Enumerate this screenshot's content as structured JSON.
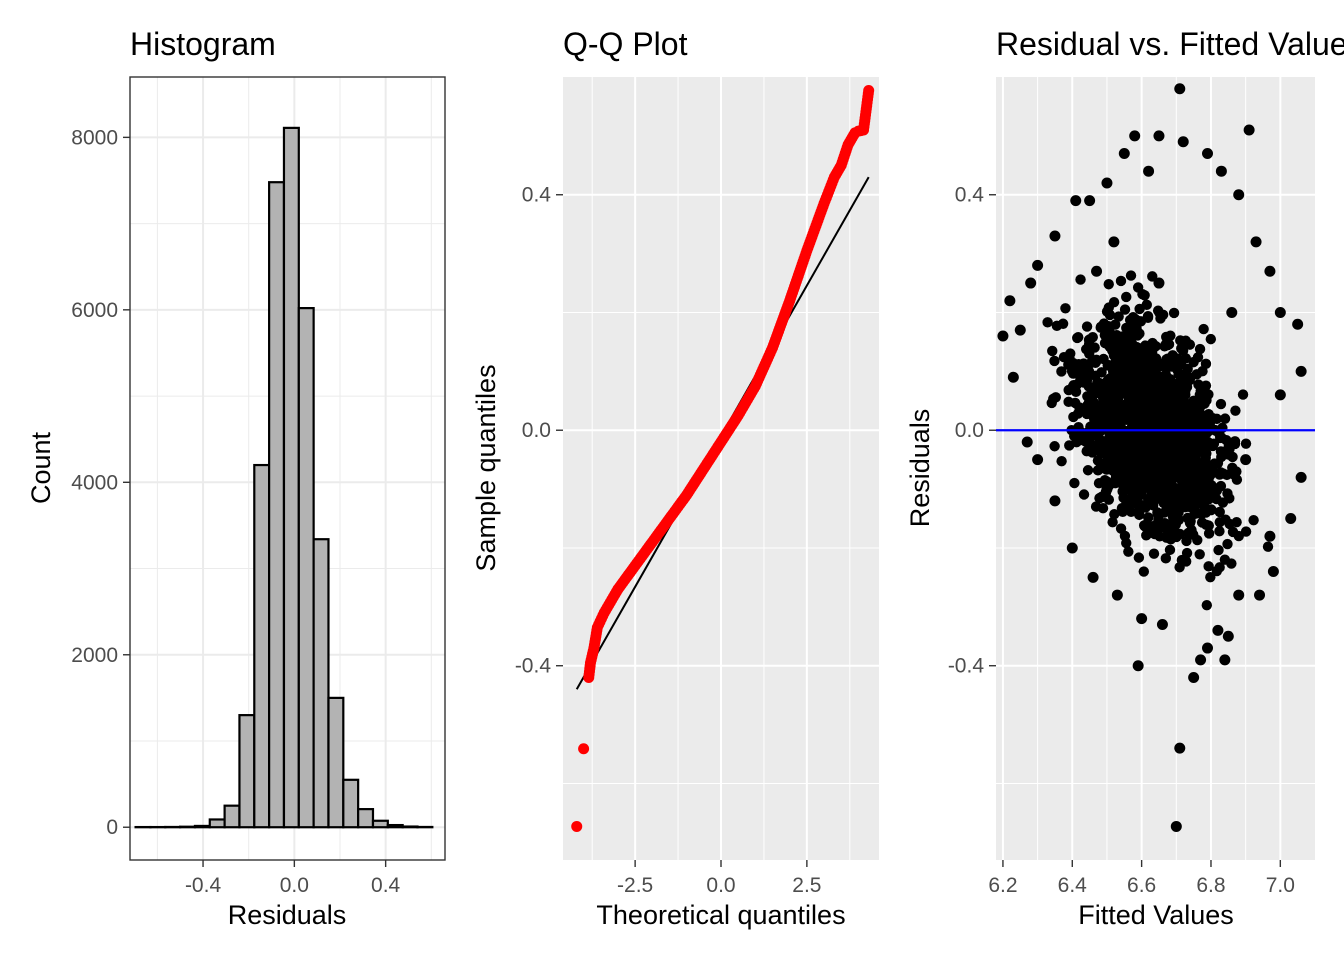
{
  "chart_data": [
    {
      "type": "bar",
      "title": "Histogram",
      "xlabel": "Residuals",
      "ylabel": "Count",
      "xlim": [
        -0.72,
        0.66
      ],
      "ylim": [
        -380,
        8700
      ],
      "x_ticks": [
        -0.4,
        0.0,
        0.4
      ],
      "x_tick_labels": [
        "-0.4",
        "0.0",
        "0.4"
      ],
      "y_ticks": [
        0,
        2000,
        4000,
        6000,
        8000
      ],
      "y_tick_labels": [
        "0",
        "2000",
        "4000",
        "6000",
        "8000"
      ],
      "bin_width": 0.065,
      "bin_centers": [
        -0.663,
        -0.598,
        -0.533,
        -0.468,
        -0.403,
        -0.338,
        -0.273,
        -0.208,
        -0.143,
        -0.078,
        -0.013,
        0.052,
        0.117,
        0.182,
        0.247,
        0.312,
        0.377,
        0.442,
        0.507,
        0.572
      ],
      "values": [
        2,
        2,
        3,
        6,
        15,
        90,
        250,
        1300,
        4200,
        7480,
        8110,
        6020,
        3340,
        1500,
        550,
        210,
        75,
        25,
        8,
        3
      ],
      "bar_fill": "#b3b3b3",
      "bar_stroke": "#000000",
      "grid": true,
      "theme": "bw"
    },
    {
      "type": "scatter",
      "title": "Q-Q Plot",
      "xlabel": "Theoretical quantiles",
      "ylabel": "Sample quantiles",
      "xlim": [
        -4.6,
        4.6
      ],
      "ylim": [
        -0.73,
        0.6
      ],
      "x_ticks": [
        -2.5,
        0.0,
        2.5
      ],
      "x_tick_labels": [
        "-2.5",
        "0.0",
        "2.5"
      ],
      "y_ticks": [
        -0.4,
        0.0,
        0.4
      ],
      "y_tick_labels": [
        "-0.4",
        "0.0",
        "0.4"
      ],
      "points": [
        [
          -4.2,
          -0.673
        ],
        [
          -4.0,
          -0.541
        ],
        [
          -3.85,
          -0.42
        ],
        [
          -3.8,
          -0.395
        ],
        [
          -3.7,
          -0.37
        ],
        [
          -3.6,
          -0.335
        ],
        [
          -3.4,
          -0.31
        ],
        [
          -3.0,
          -0.27
        ],
        [
          -2.5,
          -0.23
        ],
        [
          -2.0,
          -0.19
        ],
        [
          -1.5,
          -0.15
        ],
        [
          -1.0,
          -0.11
        ],
        [
          -0.5,
          -0.065
        ],
        [
          0.0,
          -0.02
        ],
        [
          0.5,
          0.025
        ],
        [
          1.0,
          0.075
        ],
        [
          1.5,
          0.14
        ],
        [
          2.0,
          0.22
        ],
        [
          2.5,
          0.305
        ],
        [
          3.0,
          0.385
        ],
        [
          3.3,
          0.43
        ],
        [
          3.5,
          0.45
        ],
        [
          3.7,
          0.485
        ],
        [
          3.9,
          0.505
        ],
        [
          4.0,
          0.508
        ],
        [
          4.15,
          0.51
        ],
        [
          4.3,
          0.577
        ]
      ],
      "reference_line": {
        "x": [
          -4.2,
          4.3
        ],
        "y": [
          -0.44,
          0.43
        ],
        "color": "#000000"
      },
      "point_color": "#ff0000",
      "grid": true,
      "theme": "grey"
    },
    {
      "type": "scatter",
      "title": "Residual vs. Fitted Values",
      "xlabel": "Fitted Values",
      "ylabel": "Residuals",
      "xlim": [
        6.18,
        7.1
      ],
      "ylim": [
        -0.73,
        0.6
      ],
      "x_ticks": [
        6.2,
        6.4,
        6.6,
        6.8,
        7.0
      ],
      "x_tick_labels": [
        "6.2",
        "6.4",
        "6.6",
        "6.8",
        "7.0"
      ],
      "y_ticks": [
        -0.4,
        0.0,
        0.4
      ],
      "y_tick_labels": [
        "-0.4",
        "0.0",
        "0.4"
      ],
      "points": [
        [
          6.71,
          0.58
        ],
        [
          6.91,
          0.51
        ],
        [
          6.58,
          0.5
        ],
        [
          6.65,
          0.5
        ],
        [
          6.72,
          0.49
        ],
        [
          6.79,
          0.47
        ],
        [
          6.5,
          0.42
        ],
        [
          6.41,
          0.39
        ],
        [
          6.45,
          0.39
        ],
        [
          6.35,
          0.33
        ],
        [
          6.3,
          0.28
        ],
        [
          6.28,
          0.25
        ],
        [
          6.22,
          0.22
        ],
        [
          6.25,
          0.17
        ],
        [
          6.2,
          0.16
        ],
        [
          6.23,
          0.09
        ],
        [
          7.05,
          0.18
        ],
        [
          7.0,
          0.06
        ],
        [
          7.06,
          0.1
        ],
        [
          7.06,
          -0.08
        ],
        [
          7.03,
          -0.15
        ],
        [
          6.97,
          -0.18
        ],
        [
          6.98,
          -0.24
        ],
        [
          6.88,
          -0.28
        ],
        [
          6.94,
          -0.28
        ],
        [
          6.82,
          -0.34
        ],
        [
          6.85,
          -0.35
        ],
        [
          6.79,
          -0.37
        ],
        [
          6.77,
          -0.39
        ],
        [
          6.75,
          -0.42
        ],
        [
          6.71,
          -0.54
        ],
        [
          6.7,
          -0.673
        ],
        [
          6.59,
          -0.4
        ],
        [
          6.84,
          -0.39
        ],
        [
          6.3,
          -0.05
        ],
        [
          6.27,
          -0.02
        ],
        [
          6.35,
          -0.12
        ],
        [
          6.4,
          -0.2
        ],
        [
          6.46,
          -0.25
        ],
        [
          6.53,
          -0.28
        ],
        [
          6.6,
          -0.32
        ],
        [
          6.66,
          -0.33
        ],
        [
          6.47,
          0.27
        ],
        [
          6.52,
          0.32
        ],
        [
          6.88,
          0.4
        ],
        [
          6.93,
          0.32
        ],
        [
          6.97,
          0.27
        ],
        [
          7.0,
          0.2
        ],
        [
          6.62,
          0.44
        ],
        [
          6.55,
          0.47
        ],
        [
          6.83,
          0.44
        ],
        [
          6.86,
          0.2
        ],
        [
          6.6,
          0.1
        ],
        [
          6.7,
          0.0
        ],
        [
          6.5,
          -0.1
        ],
        [
          6.9,
          -0.05
        ],
        [
          6.65,
          0.25
        ]
      ],
      "point_color": "#000000",
      "reference_line": {
        "y": 0.0,
        "color": "#0000ff"
      },
      "grid": true,
      "theme": "grey"
    }
  ]
}
